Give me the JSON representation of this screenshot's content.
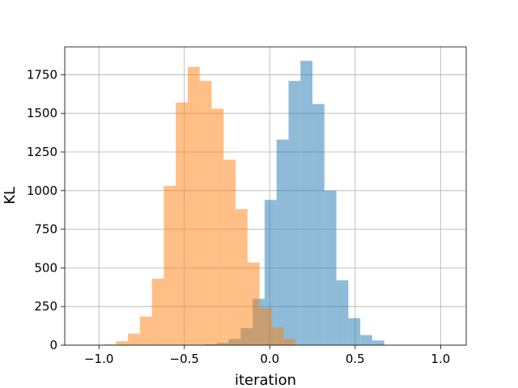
{
  "chart_data": {
    "type": "histogram",
    "title": "",
    "xlabel": "iteration",
    "ylabel": "KL",
    "xlim": [
      -1.2,
      1.15
    ],
    "ylim": [
      0,
      1930
    ],
    "grid": true,
    "legend": "none",
    "xticks": [
      -1.0,
      -0.5,
      0.0,
      0.5,
      1.0
    ],
    "xtick_labels": [
      "−1.0",
      "−0.5",
      "0.0",
      "0.5",
      "1.0"
    ],
    "yticks": [
      0,
      250,
      500,
      750,
      1000,
      1250,
      1500,
      1750
    ],
    "ytick_labels": [
      "0",
      "250",
      "500",
      "750",
      "1000",
      "1250",
      "1500",
      "1750"
    ],
    "series": [
      {
        "color": "#1f77b4",
        "alpha": 0.5,
        "bin_edges": [
          -0.38,
          -0.31,
          -0.24,
          -0.17,
          -0.1,
          -0.03,
          0.04,
          0.11,
          0.18,
          0.25,
          0.32,
          0.39,
          0.46,
          0.53,
          0.6,
          0.67
        ],
        "counts": [
          5,
          15,
          40,
          110,
          300,
          940,
          1330,
          1710,
          1840,
          1560,
          1000,
          420,
          175,
          65,
          30
        ]
      },
      {
        "color": "#ff7f0e",
        "alpha": 0.5,
        "bin_edges": [
          -0.97,
          -0.9,
          -0.83,
          -0.76,
          -0.69,
          -0.62,
          -0.55,
          -0.48,
          -0.41,
          -0.34,
          -0.27,
          -0.2,
          -0.13,
          -0.06,
          0.01,
          0.08,
          0.15
        ],
        "counts": [
          5,
          25,
          75,
          185,
          430,
          1030,
          1570,
          1800,
          1710,
          1530,
          1200,
          880,
          535,
          240,
          115,
          40
        ]
      }
    ]
  }
}
